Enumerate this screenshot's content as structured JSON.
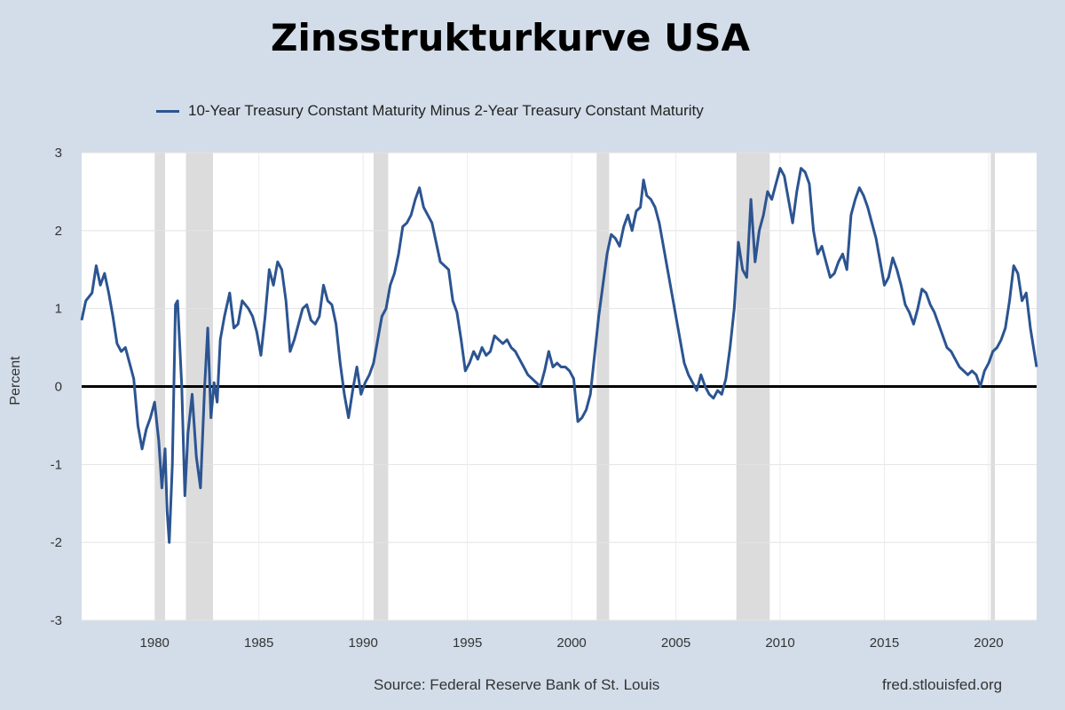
{
  "chart_data": {
    "type": "line",
    "title": "Zinsstrukturkurve USA",
    "ylabel": "Percent",
    "xlim": [
      1976.5,
      2022.3
    ],
    "ylim": [
      -3,
      3
    ],
    "yticks": [
      3,
      2,
      1,
      0,
      -1,
      -2,
      -3
    ],
    "xticks": [
      1980,
      1985,
      1990,
      1995,
      2000,
      2005,
      2010,
      2015,
      2020
    ],
    "grid": true,
    "legend_position": "top-left",
    "zero_line": true,
    "recessions": [
      [
        1980.0,
        1980.5
      ],
      [
        1981.5,
        1982.8
      ],
      [
        1990.5,
        1991.2
      ],
      [
        2001.2,
        2001.8
      ],
      [
        2007.9,
        2009.5
      ],
      [
        2020.1,
        2020.3
      ]
    ],
    "series": [
      {
        "name": "10-Year Treasury Constant Maturity Minus 2-Year Treasury Constant Maturity",
        "color": "#2c5491",
        "points": [
          [
            1976.5,
            0.85
          ],
          [
            1976.7,
            1.1
          ],
          [
            1977.0,
            1.2
          ],
          [
            1977.2,
            1.55
          ],
          [
            1977.4,
            1.3
          ],
          [
            1977.6,
            1.45
          ],
          [
            1977.8,
            1.2
          ],
          [
            1978.0,
            0.9
          ],
          [
            1978.2,
            0.55
          ],
          [
            1978.4,
            0.45
          ],
          [
            1978.6,
            0.5
          ],
          [
            1978.8,
            0.3
          ],
          [
            1979.0,
            0.1
          ],
          [
            1979.2,
            -0.5
          ],
          [
            1979.4,
            -0.8
          ],
          [
            1979.6,
            -0.55
          ],
          [
            1979.8,
            -0.4
          ],
          [
            1980.0,
            -0.2
          ],
          [
            1980.2,
            -0.7
          ],
          [
            1980.35,
            -1.3
          ],
          [
            1980.5,
            -0.8
          ],
          [
            1980.6,
            -1.6
          ],
          [
            1980.7,
            -2.0
          ],
          [
            1980.85,
            -1.0
          ],
          [
            1981.0,
            1.05
          ],
          [
            1981.1,
            1.1
          ],
          [
            1981.3,
            0.0
          ],
          [
            1981.45,
            -1.4
          ],
          [
            1981.6,
            -0.6
          ],
          [
            1981.8,
            -0.1
          ],
          [
            1982.0,
            -0.9
          ],
          [
            1982.2,
            -1.3
          ],
          [
            1982.4,
            0.0
          ],
          [
            1982.55,
            0.75
          ],
          [
            1982.7,
            -0.4
          ],
          [
            1982.85,
            0.05
          ],
          [
            1983.0,
            -0.2
          ],
          [
            1983.15,
            0.6
          ],
          [
            1983.35,
            0.9
          ],
          [
            1983.6,
            1.2
          ],
          [
            1983.8,
            0.75
          ],
          [
            1984.0,
            0.8
          ],
          [
            1984.2,
            1.1
          ],
          [
            1984.5,
            1.0
          ],
          [
            1984.7,
            0.9
          ],
          [
            1984.9,
            0.7
          ],
          [
            1985.1,
            0.4
          ],
          [
            1985.3,
            0.9
          ],
          [
            1985.5,
            1.5
          ],
          [
            1985.7,
            1.3
          ],
          [
            1985.9,
            1.6
          ],
          [
            1986.1,
            1.5
          ],
          [
            1986.3,
            1.1
          ],
          [
            1986.5,
            0.45
          ],
          [
            1986.7,
            0.6
          ],
          [
            1986.9,
            0.8
          ],
          [
            1987.1,
            1.0
          ],
          [
            1987.3,
            1.05
          ],
          [
            1987.5,
            0.85
          ],
          [
            1987.7,
            0.8
          ],
          [
            1987.9,
            0.9
          ],
          [
            1988.1,
            1.3
          ],
          [
            1988.3,
            1.1
          ],
          [
            1988.5,
            1.05
          ],
          [
            1988.7,
            0.8
          ],
          [
            1988.9,
            0.3
          ],
          [
            1989.1,
            -0.1
          ],
          [
            1989.3,
            -0.4
          ],
          [
            1989.5,
            -0.05
          ],
          [
            1989.7,
            0.25
          ],
          [
            1989.9,
            -0.1
          ],
          [
            1990.1,
            0.05
          ],
          [
            1990.3,
            0.15
          ],
          [
            1990.5,
            0.3
          ],
          [
            1990.7,
            0.6
          ],
          [
            1990.9,
            0.9
          ],
          [
            1991.1,
            1.0
          ],
          [
            1991.3,
            1.3
          ],
          [
            1991.5,
            1.45
          ],
          [
            1991.7,
            1.7
          ],
          [
            1991.9,
            2.05
          ],
          [
            1992.1,
            2.1
          ],
          [
            1992.3,
            2.2
          ],
          [
            1992.5,
            2.4
          ],
          [
            1992.7,
            2.55
          ],
          [
            1992.9,
            2.3
          ],
          [
            1993.1,
            2.2
          ],
          [
            1993.3,
            2.1
          ],
          [
            1993.5,
            1.85
          ],
          [
            1993.7,
            1.6
          ],
          [
            1993.9,
            1.55
          ],
          [
            1994.1,
            1.5
          ],
          [
            1994.3,
            1.1
          ],
          [
            1994.5,
            0.95
          ],
          [
            1994.7,
            0.6
          ],
          [
            1994.9,
            0.2
          ],
          [
            1995.1,
            0.3
          ],
          [
            1995.3,
            0.45
          ],
          [
            1995.5,
            0.35
          ],
          [
            1995.7,
            0.5
          ],
          [
            1995.9,
            0.4
          ],
          [
            1996.1,
            0.45
          ],
          [
            1996.3,
            0.65
          ],
          [
            1996.5,
            0.6
          ],
          [
            1996.7,
            0.55
          ],
          [
            1996.9,
            0.6
          ],
          [
            1997.1,
            0.5
          ],
          [
            1997.3,
            0.45
          ],
          [
            1997.5,
            0.35
          ],
          [
            1997.7,
            0.25
          ],
          [
            1997.9,
            0.15
          ],
          [
            1998.1,
            0.1
          ],
          [
            1998.3,
            0.05
          ],
          [
            1998.5,
            0.0
          ],
          [
            1998.7,
            0.2
          ],
          [
            1998.9,
            0.45
          ],
          [
            1999.1,
            0.25
          ],
          [
            1999.3,
            0.3
          ],
          [
            1999.5,
            0.25
          ],
          [
            1999.7,
            0.25
          ],
          [
            1999.9,
            0.2
          ],
          [
            2000.1,
            0.1
          ],
          [
            2000.3,
            -0.45
          ],
          [
            2000.5,
            -0.4
          ],
          [
            2000.7,
            -0.3
          ],
          [
            2000.9,
            -0.1
          ],
          [
            2001.1,
            0.4
          ],
          [
            2001.3,
            0.9
          ],
          [
            2001.5,
            1.3
          ],
          [
            2001.7,
            1.7
          ],
          [
            2001.9,
            1.95
          ],
          [
            2002.1,
            1.9
          ],
          [
            2002.3,
            1.8
          ],
          [
            2002.5,
            2.05
          ],
          [
            2002.7,
            2.2
          ],
          [
            2002.9,
            2.0
          ],
          [
            2003.1,
            2.25
          ],
          [
            2003.3,
            2.3
          ],
          [
            2003.45,
            2.65
          ],
          [
            2003.6,
            2.45
          ],
          [
            2003.8,
            2.4
          ],
          [
            2004.0,
            2.3
          ],
          [
            2004.2,
            2.1
          ],
          [
            2004.4,
            1.8
          ],
          [
            2004.6,
            1.5
          ],
          [
            2004.8,
            1.2
          ],
          [
            2005.0,
            0.9
          ],
          [
            2005.2,
            0.6
          ],
          [
            2005.4,
            0.3
          ],
          [
            2005.6,
            0.15
          ],
          [
            2005.8,
            0.05
          ],
          [
            2006.0,
            -0.05
          ],
          [
            2006.2,
            0.15
          ],
          [
            2006.4,
            0.0
          ],
          [
            2006.6,
            -0.1
          ],
          [
            2006.8,
            -0.15
          ],
          [
            2007.0,
            -0.05
          ],
          [
            2007.2,
            -0.1
          ],
          [
            2007.4,
            0.1
          ],
          [
            2007.6,
            0.5
          ],
          [
            2007.8,
            1.0
          ],
          [
            2008.0,
            1.85
          ],
          [
            2008.2,
            1.5
          ],
          [
            2008.4,
            1.4
          ],
          [
            2008.6,
            2.4
          ],
          [
            2008.8,
            1.6
          ],
          [
            2009.0,
            2.0
          ],
          [
            2009.2,
            2.2
          ],
          [
            2009.4,
            2.5
          ],
          [
            2009.6,
            2.4
          ],
          [
            2009.8,
            2.6
          ],
          [
            2010.0,
            2.8
          ],
          [
            2010.2,
            2.7
          ],
          [
            2010.4,
            2.4
          ],
          [
            2010.6,
            2.1
          ],
          [
            2010.8,
            2.5
          ],
          [
            2011.0,
            2.8
          ],
          [
            2011.2,
            2.75
          ],
          [
            2011.4,
            2.6
          ],
          [
            2011.6,
            2.0
          ],
          [
            2011.8,
            1.7
          ],
          [
            2012.0,
            1.8
          ],
          [
            2012.2,
            1.6
          ],
          [
            2012.4,
            1.4
          ],
          [
            2012.6,
            1.45
          ],
          [
            2012.8,
            1.6
          ],
          [
            2013.0,
            1.7
          ],
          [
            2013.2,
            1.5
          ],
          [
            2013.4,
            2.2
          ],
          [
            2013.6,
            2.4
          ],
          [
            2013.8,
            2.55
          ],
          [
            2014.0,
            2.45
          ],
          [
            2014.2,
            2.3
          ],
          [
            2014.4,
            2.1
          ],
          [
            2014.6,
            1.9
          ],
          [
            2014.8,
            1.6
          ],
          [
            2015.0,
            1.3
          ],
          [
            2015.2,
            1.4
          ],
          [
            2015.4,
            1.65
          ],
          [
            2015.6,
            1.5
          ],
          [
            2015.8,
            1.3
          ],
          [
            2016.0,
            1.05
          ],
          [
            2016.2,
            0.95
          ],
          [
            2016.4,
            0.8
          ],
          [
            2016.6,
            1.0
          ],
          [
            2016.8,
            1.25
          ],
          [
            2017.0,
            1.2
          ],
          [
            2017.2,
            1.05
          ],
          [
            2017.4,
            0.95
          ],
          [
            2017.6,
            0.8
          ],
          [
            2017.8,
            0.65
          ],
          [
            2018.0,
            0.5
          ],
          [
            2018.2,
            0.45
          ],
          [
            2018.4,
            0.35
          ],
          [
            2018.6,
            0.25
          ],
          [
            2018.8,
            0.2
          ],
          [
            2019.0,
            0.15
          ],
          [
            2019.2,
            0.2
          ],
          [
            2019.4,
            0.15
          ],
          [
            2019.6,
            0.0
          ],
          [
            2019.8,
            0.2
          ],
          [
            2020.0,
            0.3
          ],
          [
            2020.2,
            0.45
          ],
          [
            2020.4,
            0.5
          ],
          [
            2020.6,
            0.6
          ],
          [
            2020.8,
            0.75
          ],
          [
            2021.0,
            1.1
          ],
          [
            2021.2,
            1.55
          ],
          [
            2021.4,
            1.45
          ],
          [
            2021.6,
            1.1
          ],
          [
            2021.8,
            1.2
          ],
          [
            2022.0,
            0.75
          ],
          [
            2022.3,
            0.25
          ]
        ]
      }
    ]
  },
  "footer": {
    "source": "Source: Federal Reserve Bank of St. Louis",
    "site": "fred.stlouisfed.org"
  }
}
